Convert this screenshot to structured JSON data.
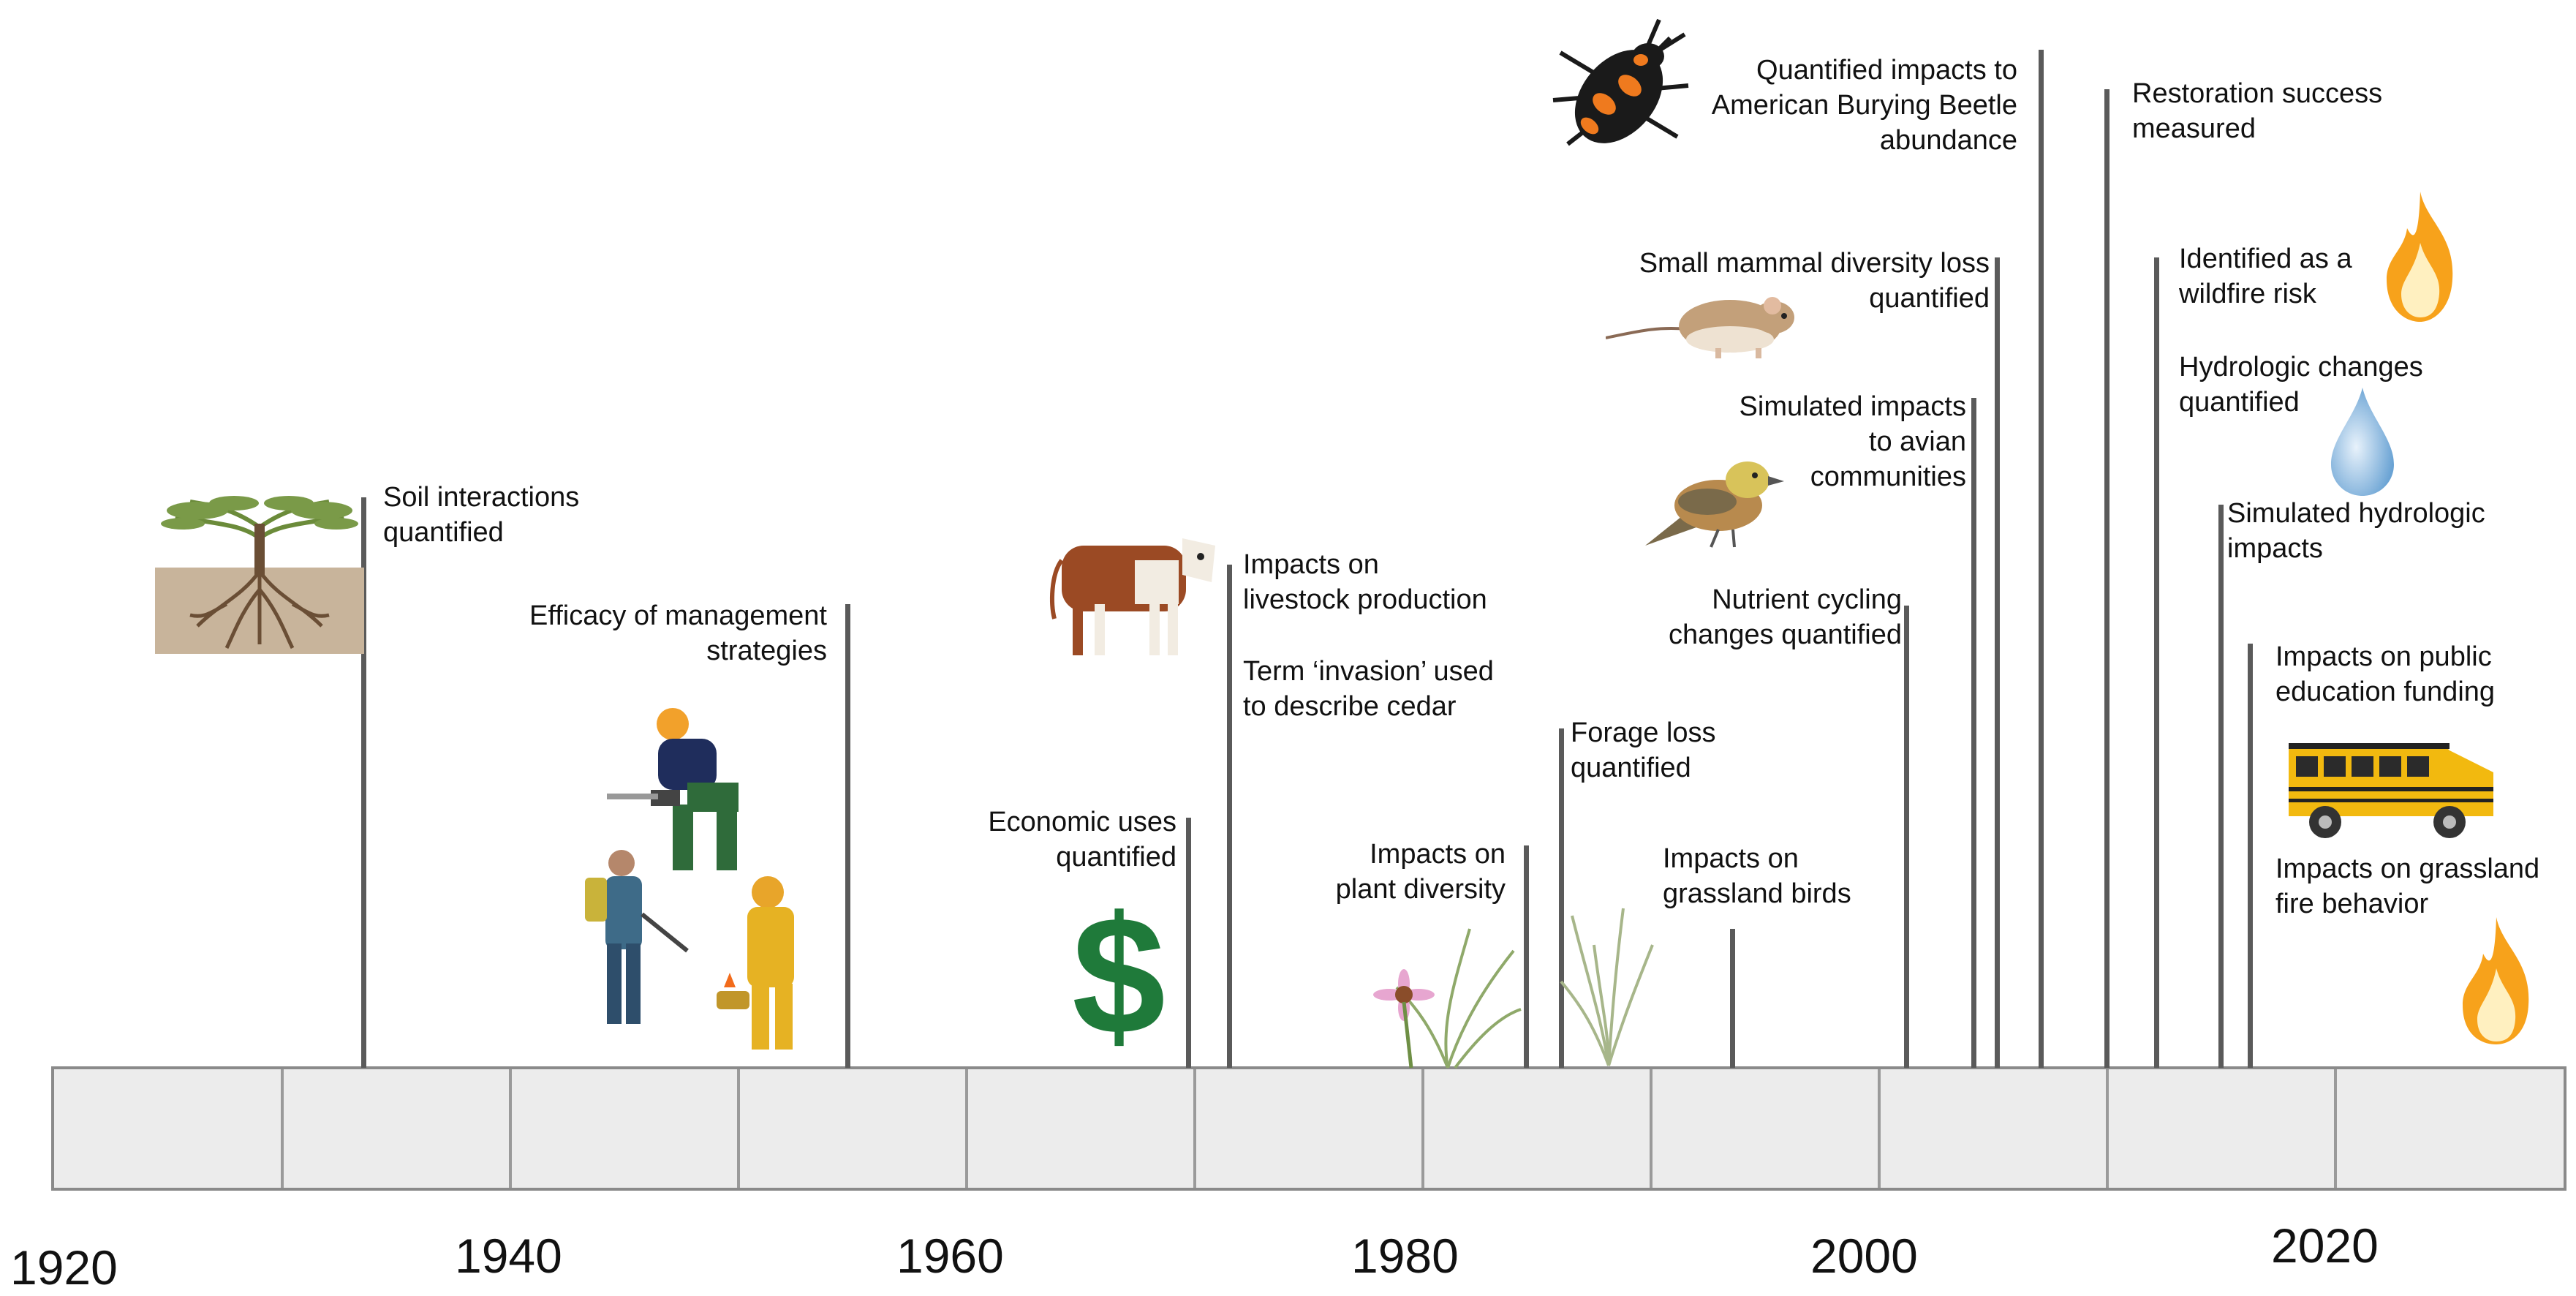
{
  "timeline": {
    "years": [
      "1920",
      "1940",
      "1960",
      "1980",
      "2000",
      "2020"
    ]
  },
  "events": {
    "soil": [
      "Soil interactions",
      "quantified"
    ],
    "management": [
      "Efficacy of management",
      "strategies"
    ],
    "economic": [
      "Economic uses",
      "quantified"
    ],
    "livestock": [
      "Impacts on",
      "livestock production"
    ],
    "invasion": [
      "Term ‘invasion’ used",
      "to describe cedar"
    ],
    "plant_diversity": [
      "Impacts on",
      "plant diversity"
    ],
    "forage": [
      "Forage loss",
      "quantified"
    ],
    "grassland_birds": [
      "Impacts on",
      "grassland birds"
    ],
    "nutrient": [
      "Nutrient cycling",
      "changes quantified"
    ],
    "avian": [
      "Simulated impacts",
      "to avian",
      "communities"
    ],
    "small_mammal": [
      "Small mammal diversity loss",
      "quantified"
    ],
    "beetle": [
      "Quantified impacts to",
      "American Burying Beetle",
      "abundance"
    ],
    "restoration": [
      "Restoration success",
      "measured"
    ],
    "wildfire": [
      "Identified as a",
      "wildfire risk"
    ],
    "hydrologic_changes": [
      "Hydrologic changes",
      "quantified"
    ],
    "simulated_hydrologic": [
      "Simulated hydrologic",
      "impacts"
    ],
    "education": [
      "Impacts on public",
      "education funding"
    ],
    "fire_behavior": [
      "Impacts on grassland",
      "fire behavior"
    ]
  },
  "icons": {
    "tree": "tree-roots-icon",
    "workers": "land-management-workers-icon",
    "dollar": "dollar-sign-icon",
    "cow": "cow-icon",
    "flower": "coneflower-icon",
    "grass": "grass-icon",
    "bird": "bird-icon",
    "mouse": "mouse-icon",
    "beetle": "beetle-icon",
    "fire": "fire-icon",
    "droplet": "water-droplet-icon",
    "bus": "school-bus-icon"
  },
  "colors": {
    "dollar": "#1f7a3a",
    "soil": "#c8b49b",
    "fire": "#f7a21b",
    "bus": "#f2b90f",
    "droplet": "#7fb3de"
  }
}
